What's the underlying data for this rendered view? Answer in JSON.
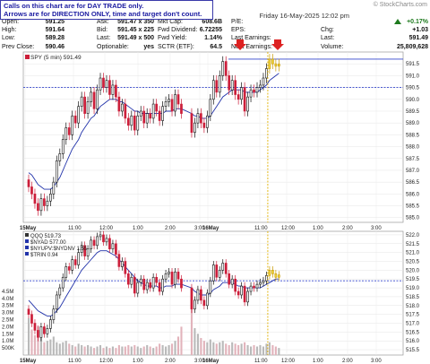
{
  "note": [
    "Calls on this chart are for DAY TRADE only.",
    "Arrows are for DIRECTION ONLY, time and target don't count."
  ],
  "watermark": "© StockCharts.com",
  "header": {
    "date": "Friday 16-May-2025 12:02 pm",
    "col1": [
      [
        "Open:",
        "591.25"
      ],
      [
        "High:",
        "591.64"
      ],
      [
        "Low:",
        "589.28"
      ],
      [
        "Prev Close:",
        "590.46"
      ]
    ],
    "col2": [
      [
        "Ask:",
        "591.47 x 350"
      ],
      [
        "Bid:",
        "591.45 x 225"
      ],
      [
        "Last:",
        "591.49 x 500"
      ],
      [
        "Optionable:",
        "yes"
      ]
    ],
    "col3": [
      [
        "Mkt Cap:",
        "608.6B"
      ],
      [
        "Fwd Dividend:",
        "6.72255"
      ],
      [
        "Fwd Yield:",
        "1.14%"
      ],
      [
        "SCTR (ETF):",
        "64.5"
      ]
    ],
    "col4": [
      [
        "P/E:",
        ""
      ],
      [
        "EPS:",
        ""
      ],
      [
        "Last Earnings:",
        ""
      ],
      [
        "Next Earnings:",
        ""
      ]
    ],
    "col5": [
      [
        "",
        "+0.17%"
      ],
      [
        "Chg:",
        "+1.03"
      ],
      [
        "Last:",
        "591.49"
      ],
      [
        "Volume:",
        "25,809,628"
      ]
    ]
  },
  "colors": {
    "up": "#111111",
    "down": "#cc1f3a",
    "ma": "#2233aa",
    "ref": "#3344cc",
    "marker": "#e0b000",
    "arrow": "#dd2222"
  },
  "chart_data": [
    {
      "type": "candlestick",
      "legend": "SPY (5 min) 591.49",
      "y_ticks": [
        585.0,
        585.5,
        586.0,
        586.5,
        587.0,
        587.5,
        588.0,
        588.5,
        589.0,
        589.5,
        590.0,
        590.5,
        591.0,
        591.5
      ],
      "y_tick_labels": [
        "585.0",
        "585.5",
        "586.0",
        "586.5",
        "587.0",
        "587.5",
        "588.0",
        "588.5",
        "589.0",
        "589.5",
        "590.0",
        "590.5",
        "591.0",
        "591.5"
      ],
      "ylim": [
        584.8,
        592.0
      ],
      "x_tick_labels": [
        "15May",
        "11:00",
        "12:00",
        "1:00",
        "2:00",
        "3:00",
        "16May",
        "11:00",
        "12:00",
        "1:00",
        "2:00",
        "3:00"
      ],
      "reference_lines": [
        590.5,
        591.7
      ],
      "close": [
        586.3,
        586.0,
        585.6,
        585.3,
        585.8,
        585.5,
        585.7,
        586.0,
        586.5,
        587.4,
        587.7,
        588.3,
        588.8,
        588.5,
        589.3,
        589.0,
        589.7,
        590.1,
        589.4,
        589.9,
        590.3,
        589.6,
        590.4,
        590.9,
        590.5,
        590.8,
        590.2,
        590.6,
        590.1,
        589.5,
        589.8,
        589.2,
        588.9,
        589.3,
        588.7,
        589.3,
        589.5,
        589.0,
        589.4,
        589.2,
        589.8,
        589.5,
        589.1,
        589.7,
        589.9,
        590.0,
        589.5,
        590.2,
        589.8,
        589.4,
        588.6,
        589.0,
        589.4,
        589.0,
        588.8,
        589.3,
        590.0,
        590.8,
        590.3,
        591.0,
        591.6,
        591.0,
        590.4,
        590.8,
        590.2,
        590.0,
        590.5,
        589.5,
        590.1,
        590.4,
        590.3,
        590.5,
        590.6,
        590.9,
        591.3,
        591.7,
        591.5,
        591.4,
        591.49
      ],
      "ma": [
        586.9,
        586.8,
        586.6,
        586.4,
        586.3,
        586.2,
        586.2,
        586.2,
        586.3,
        586.5,
        586.7,
        587.0,
        587.3,
        587.6,
        587.9,
        588.1,
        588.3,
        588.6,
        588.8,
        589.0,
        589.2,
        589.3,
        589.5,
        589.7,
        589.8,
        589.9,
        590.0,
        590.0,
        590.0,
        589.9,
        589.9,
        589.8,
        589.7,
        589.6,
        589.5,
        589.5,
        589.4,
        589.4,
        589.4,
        589.4,
        589.4,
        589.4,
        589.4,
        589.4,
        589.5,
        589.5,
        589.5,
        589.6,
        589.6,
        589.6,
        589.4,
        589.3,
        589.3,
        589.2,
        589.2,
        589.2,
        589.3,
        589.5,
        589.7,
        589.9,
        590.1,
        590.2,
        590.3,
        590.4,
        590.4,
        590.4,
        590.4,
        590.3,
        590.3,
        590.3,
        590.3,
        590.3,
        590.4,
        590.5,
        590.6,
        590.8,
        590.9,
        591.0,
        591.1
      ]
    },
    {
      "type": "candlestick",
      "legend": [
        "QQQ 519.73",
        "$NYAD 577.00",
        "$NYUPV:$NYDNV 1.55",
        "$TRIN 0.94"
      ],
      "y_ticks": [
        515.5,
        516.0,
        516.5,
        517.0,
        517.5,
        518.0,
        518.5,
        519.0,
        519.5,
        520.0,
        520.5,
        521.0,
        521.5,
        522.0
      ],
      "y_tick_labels": [
        "515.5",
        "516.0",
        "516.5",
        "517.0",
        "517.5",
        "518.0",
        "518.5",
        "519.0",
        "519.5",
        "520.0",
        "520.5",
        "521.0",
        "521.5",
        "522.0"
      ],
      "ylim": [
        515.2,
        522.2
      ],
      "volume_axis_labels": [
        "4.5M",
        "4.0M",
        "3.5M",
        "3.0M",
        "2.5M",
        "2.0M",
        "1.5M",
        "1.0M",
        "500K"
      ],
      "volume_axis_values": [
        4.5,
        4.0,
        3.5,
        3.0,
        2.5,
        2.0,
        1.5,
        1.0,
        0.5
      ],
      "x_tick_labels": [
        "15May",
        "11:00",
        "12:00",
        "1:00",
        "2:00",
        "3:00",
        "16May",
        "11:00",
        "12:00",
        "1:00",
        "2:00",
        "3:00"
      ],
      "reference_lines": [
        519.4
      ],
      "close": [
        517.5,
        517.0,
        516.6,
        516.2,
        516.8,
        516.4,
        516.7,
        517.2,
        517.8,
        518.6,
        519.0,
        519.6,
        520.2,
        520.0,
        520.6,
        520.3,
        521.0,
        521.4,
        520.8,
        521.2,
        521.7,
        521.4,
        521.9,
        522.0,
        521.6,
        521.8,
        521.2,
        521.5,
        520.9,
        520.2,
        520.5,
        519.8,
        519.2,
        519.6,
        518.7,
        519.3,
        519.5,
        518.9,
        519.3,
        519.0,
        519.6,
        519.3,
        518.8,
        519.5,
        519.8,
        519.9,
        519.2,
        519.9,
        519.5,
        519.0,
        517.8,
        518.3,
        518.9,
        518.3,
        518.0,
        518.7,
        519.4,
        520.3,
        519.6,
        520.0,
        520.4,
        519.8,
        519.2,
        519.5,
        518.8,
        518.6,
        519.1,
        518.2,
        518.8,
        519.1,
        519.0,
        519.2,
        519.3,
        519.4,
        519.7,
        520.0,
        519.8,
        519.6,
        519.73
      ],
      "ma": [
        518.3,
        518.1,
        517.9,
        517.7,
        517.6,
        517.5,
        517.4,
        517.4,
        517.5,
        517.7,
        517.9,
        518.2,
        518.5,
        518.8,
        519.1,
        519.4,
        519.7,
        520.0,
        520.2,
        520.4,
        520.6,
        520.8,
        521.0,
        521.1,
        521.1,
        521.1,
        521.0,
        520.9,
        520.8,
        520.6,
        520.4,
        520.2,
        520.0,
        519.8,
        519.6,
        519.4,
        519.3,
        519.2,
        519.1,
        519.1,
        519.1,
        519.1,
        519.0,
        519.0,
        519.1,
        519.1,
        519.1,
        519.2,
        519.2,
        519.2,
        519.0,
        518.8,
        518.7,
        518.6,
        518.6,
        518.6,
        518.7,
        518.9,
        519.0,
        519.1,
        519.3,
        519.3,
        519.3,
        519.3,
        519.2,
        519.1,
        519.1,
        519.0,
        519.0,
        519.0,
        519.0,
        519.0,
        519.0,
        519.1,
        519.2,
        519.3,
        519.4,
        519.5,
        519.5
      ],
      "volume": [
        2.6,
        1.8,
        1.4,
        2.1,
        1.2,
        0.9,
        1.0,
        1.1,
        1.3,
        0.9,
        0.8,
        0.9,
        1.0,
        0.8,
        0.7,
        0.6,
        0.8,
        0.7,
        0.6,
        0.7,
        0.6,
        0.5,
        0.6,
        0.7,
        0.5,
        0.6,
        0.5,
        0.6,
        0.5,
        0.7,
        0.6,
        0.6,
        0.7,
        0.6,
        0.7,
        0.6,
        0.5,
        0.6,
        0.7,
        0.6,
        0.5,
        0.6,
        0.8,
        0.7,
        0.6,
        0.7,
        0.8,
        1.0,
        1.3,
        2.0,
        4.2,
        1.9,
        1.5,
        1.2,
        1.0,
        0.9,
        1.1,
        0.9,
        0.8,
        0.9,
        1.0,
        0.8,
        0.7,
        0.9,
        0.8,
        0.7,
        0.8,
        0.9,
        0.7,
        0.6,
        0.7,
        0.6,
        0.7,
        0.6,
        0.8,
        0.9,
        0.7,
        0.6,
        0.5
      ]
    }
  ]
}
